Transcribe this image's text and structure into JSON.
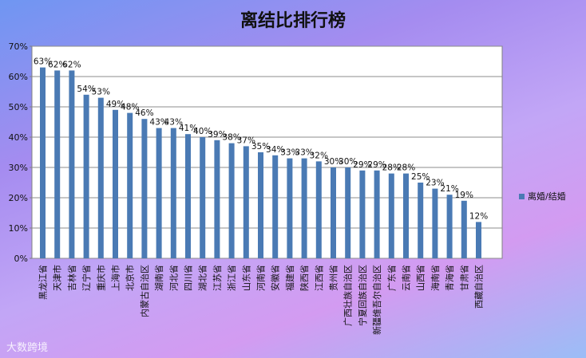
{
  "chart_data": {
    "type": "bar",
    "title": "离结比排行榜",
    "series": [
      {
        "name": "离婚/结婚",
        "color": "#4a7ab4",
        "values": [
          63,
          62,
          62,
          54,
          53,
          49,
          48,
          46,
          43,
          43,
          41,
          40,
          39,
          38,
          37,
          35,
          34,
          33,
          33,
          32,
          30,
          30,
          29,
          29,
          28,
          28,
          25,
          23,
          21,
          19,
          12
        ]
      }
    ],
    "categories": [
      "黑龙江省",
      "天津市",
      "吉林省",
      "辽宁省",
      "重庆市",
      "上海市",
      "北京市",
      "内蒙古自治区",
      "湖南省",
      "河北省",
      "四川省",
      "湖北省",
      "江苏省",
      "浙江省",
      "山东省",
      "河南省",
      "安徽省",
      "福建省",
      "陕西省",
      "江西省",
      "贵州省",
      "广西壮族自治区",
      "宁夏回族自治区",
      "新疆维吾尔自治区",
      "广东省",
      "云南省",
      "山西省",
      "海南省",
      "青海省",
      "甘肃省",
      "西藏自治区"
    ],
    "data_labels": [
      "63%",
      "62%",
      "62%",
      "54%",
      "53%",
      "49%",
      "48%",
      "46%",
      "43%",
      "43%",
      "41%",
      "40%",
      "39%",
      "38%",
      "37%",
      "35%",
      "34%",
      "33%",
      "33%",
      "32%",
      "30%",
      "30%",
      "29%",
      "29%",
      "28%",
      "28%",
      "25%",
      "23%",
      "21%",
      "19%",
      "12%"
    ],
    "y_ticks": [
      "0%",
      "10%",
      "20%",
      "30%",
      "40%",
      "50%",
      "60%",
      "70%"
    ],
    "ylim": [
      0,
      70
    ],
    "grid": true,
    "legend_position": "right"
  },
  "watermark": "大数跨境"
}
